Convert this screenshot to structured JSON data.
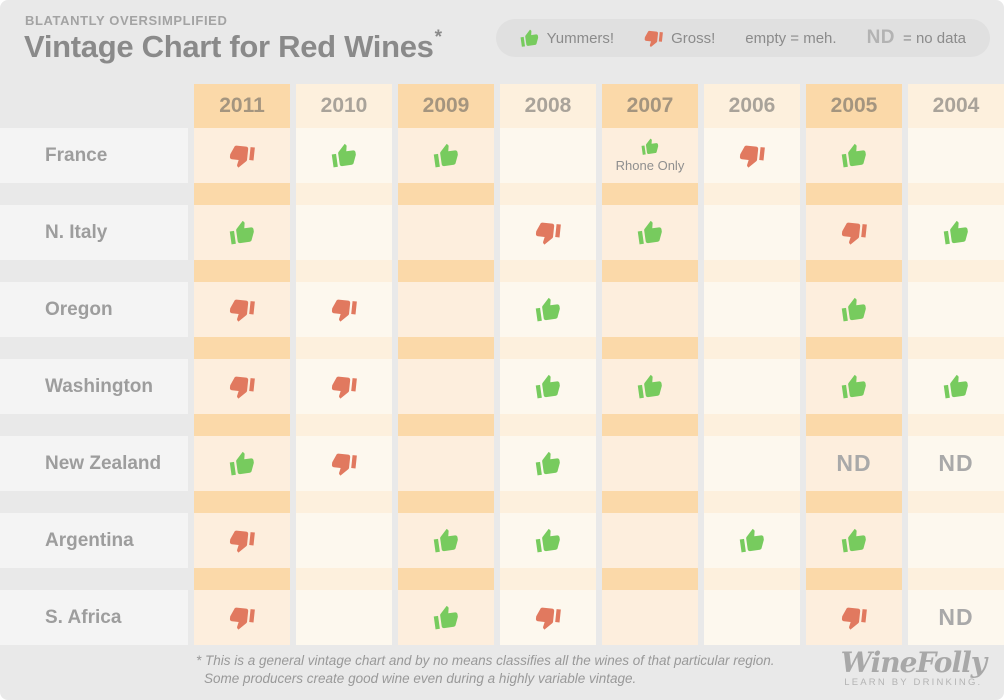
{
  "header": {
    "kicker": "BLATANTLY OVERSIMPLIFIED",
    "title": "Vintage Chart for Red Wines",
    "title_asterisk": "*"
  },
  "legend": {
    "yummers_label": "Yummers!",
    "gross_label": "Gross!",
    "empty_label": "empty = meh.",
    "nd_abbr": "ND",
    "nd_label": "= no data"
  },
  "colors": {
    "thumb_up_green": "#77cb5e",
    "thumb_down_red": "#e1795f",
    "column_odd_strong": "#fbd9a9",
    "column_odd_light": "#fdeedd",
    "column_even_strong": "#fdf0dd",
    "column_even_light": "#fdf8ee",
    "page_background": "#e9e9e9",
    "label_cell_background": "#f4f4f4"
  },
  "chart_data": {
    "type": "table",
    "title": "Vintage Chart for Red Wines",
    "columns": [
      "2011",
      "2010",
      "2009",
      "2008",
      "2007",
      "2006",
      "2005",
      "2004"
    ],
    "nd_text": "ND",
    "value_legend": {
      "up": "Yummers! (good vintage)",
      "down": "Gross! (bad vintage)",
      "empty": "meh.",
      "nd": "no data"
    },
    "rows": [
      {
        "label": "France",
        "cells": [
          "down",
          "up",
          "up",
          "empty",
          "up",
          "down",
          "up",
          "empty"
        ],
        "cell_notes": {
          "2007": "Rhone Only"
        }
      },
      {
        "label": "N. Italy",
        "cells": [
          "up",
          "empty",
          "empty",
          "down",
          "up",
          "empty",
          "down",
          "up"
        ]
      },
      {
        "label": "Oregon",
        "cells": [
          "down",
          "down",
          "empty",
          "up",
          "empty",
          "empty",
          "up",
          "empty"
        ]
      },
      {
        "label": "Washington",
        "cells": [
          "down",
          "down",
          "empty",
          "up",
          "up",
          "empty",
          "up",
          "up"
        ]
      },
      {
        "label": "New Zealand",
        "cells": [
          "up",
          "down",
          "empty",
          "up",
          "empty",
          "empty",
          "nd",
          "nd"
        ]
      },
      {
        "label": "Argentina",
        "cells": [
          "down",
          "empty",
          "up",
          "up",
          "empty",
          "up",
          "up",
          "empty"
        ]
      },
      {
        "label": "S. Africa",
        "cells": [
          "down",
          "empty",
          "up",
          "down",
          "empty",
          "empty",
          "down",
          "nd"
        ]
      }
    ]
  },
  "footer": {
    "footnote_line1": "* This is a general vintage chart and by no means classifies all the wines of that particular region.",
    "footnote_line2": "Some producers create good wine even during a highly variable vintage.",
    "logo_text": "WineFolly",
    "logo_tagline": "LEARN BY DRINKING."
  }
}
